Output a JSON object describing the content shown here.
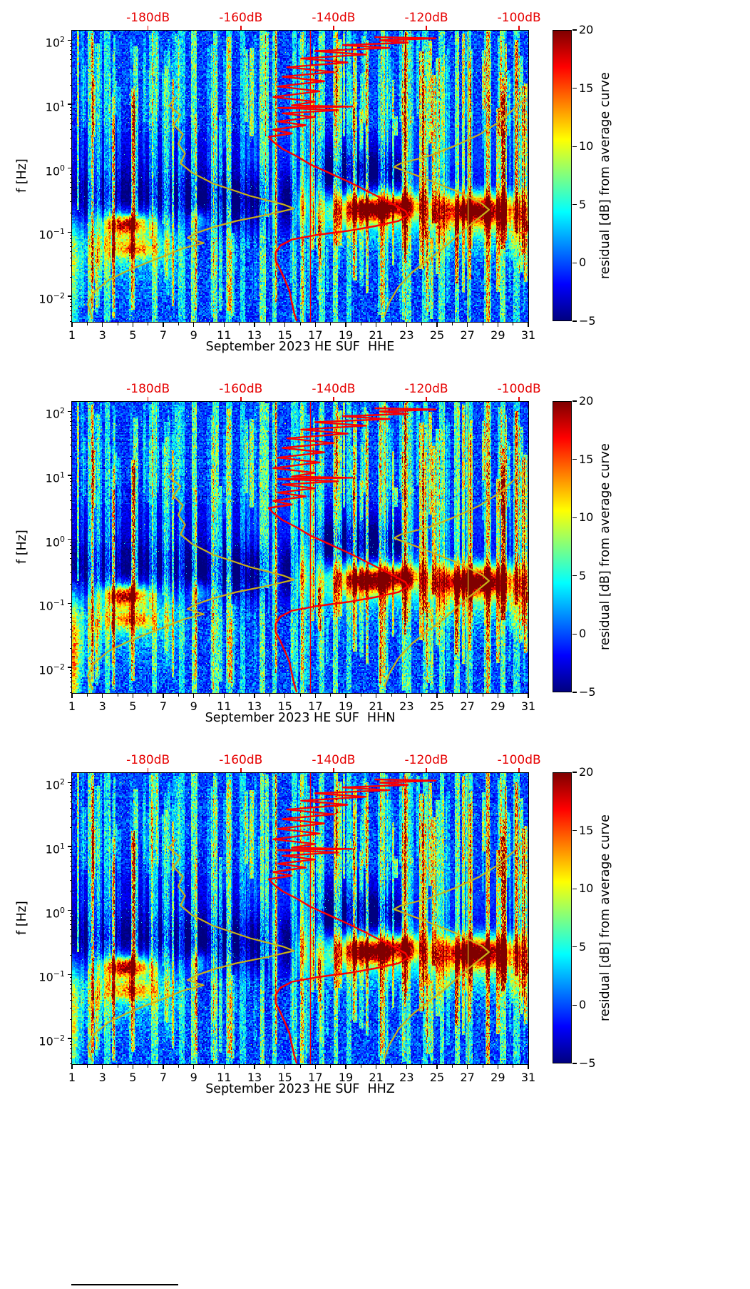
{
  "chart_data": {
    "type": "heatmap",
    "x_axis": {
      "min": 1,
      "max": 31,
      "ticks": [
        1,
        3,
        5,
        7,
        9,
        11,
        13,
        15,
        17,
        19,
        21,
        23,
        25,
        27,
        29,
        31
      ],
      "minor_step": 2
    },
    "y_axis": {
      "label": "f [Hz]",
      "scale": "log10",
      "log_min": -2.4,
      "log_max": 2.15,
      "tick_exponents": [
        2,
        1,
        0,
        -1,
        -2
      ]
    },
    "top_axis": {
      "labels": [
        "-180dB",
        "-160dB",
        "-140dB",
        "-120dB",
        "-100dB"
      ],
      "values": [
        -180,
        -160,
        -140,
        -120,
        -100
      ],
      "day_at_minus180": 6.0,
      "days_per_20db": 6.1,
      "color": "#e60000"
    },
    "colorbar": {
      "label": "residual [dB] from average curve",
      "min": -5,
      "max": 20,
      "ticks": [
        20,
        15,
        10,
        5,
        0,
        -5
      ]
    },
    "curve_colors": {
      "psd": "#fd0000",
      "reference": "#c9b117"
    },
    "curves": {
      "red_psd_db_vs_hz": [
        [
          -131,
          112
        ],
        [
          -118,
          107
        ],
        [
          -130,
          100
        ],
        [
          -124,
          92
        ],
        [
          -138,
          84
        ],
        [
          -128,
          76
        ],
        [
          -144,
          68
        ],
        [
          -133,
          60
        ],
        [
          -147,
          52
        ],
        [
          -137,
          45
        ],
        [
          -150,
          38
        ],
        [
          -140,
          32
        ],
        [
          -151,
          27
        ],
        [
          -142,
          23
        ],
        [
          -152,
          19
        ],
        [
          -143,
          16
        ],
        [
          -153,
          13
        ],
        [
          -144,
          11
        ],
        [
          -149,
          9.6
        ],
        [
          -136,
          9.2
        ],
        [
          -152,
          8.8
        ],
        [
          -139,
          8.1
        ],
        [
          -151,
          7.2
        ],
        [
          -144,
          6.3
        ],
        [
          -152,
          5.4
        ],
        [
          -146,
          4.7
        ],
        [
          -153,
          4.0
        ],
        [
          -149,
          3.5
        ],
        [
          -154,
          3.1
        ],
        [
          -153,
          2.6
        ],
        [
          -151,
          2.0
        ],
        [
          -148,
          1.55
        ],
        [
          -145,
          1.15
        ],
        [
          -141,
          0.85
        ],
        [
          -136,
          0.58
        ],
        [
          -131,
          0.38
        ],
        [
          -127,
          0.27
        ],
        [
          -124.5,
          0.215
        ],
        [
          -124,
          0.185
        ],
        [
          -126,
          0.15
        ],
        [
          -131,
          0.125
        ],
        [
          -137,
          0.105
        ],
        [
          -144,
          0.09
        ],
        [
          -149,
          0.077
        ],
        [
          -151.5,
          0.062
        ],
        [
          -152.5,
          0.048
        ],
        [
          -152.5,
          0.036
        ],
        [
          -151.5,
          0.026
        ],
        [
          -150.5,
          0.018
        ],
        [
          -149.5,
          0.012
        ],
        [
          -149,
          0.008
        ],
        [
          -148.5,
          0.0055
        ],
        [
          -148,
          0.0042
        ]
      ],
      "red_vline_db": -145,
      "olive_left_db_vs_hz": [
        [
          -174,
          13
        ],
        [
          -175.5,
          9.5
        ],
        [
          -173,
          6.8
        ],
        [
          -174.5,
          4.8
        ],
        [
          -172.5,
          3.4
        ],
        [
          -173.5,
          2.4
        ],
        [
          -172,
          1.7
        ],
        [
          -173,
          1.2
        ],
        [
          -170.5,
          0.85
        ],
        [
          -166,
          0.58
        ],
        [
          -158,
          0.37
        ],
        [
          -151,
          0.275
        ],
        [
          -148.5,
          0.235
        ],
        [
          -154,
          0.19
        ],
        [
          -161,
          0.15
        ],
        [
          -166,
          0.12
        ],
        [
          -169.5,
          0.098
        ],
        [
          -171.5,
          0.082
        ],
        [
          -168,
          0.068
        ],
        [
          -172.5,
          0.056
        ],
        [
          -176,
          0.044
        ],
        [
          -180,
          0.034
        ],
        [
          -184.5,
          0.025
        ],
        [
          -188.5,
          0.018
        ],
        [
          -191.5,
          0.012
        ],
        [
          -193,
          0.0075
        ],
        [
          -192,
          0.0045
        ]
      ],
      "olive_right_db_vs_hz": [
        [
          -99,
          12
        ],
        [
          -101.5,
          8
        ],
        [
          -104.5,
          5.2
        ],
        [
          -108.5,
          3.4
        ],
        [
          -113.5,
          2.3
        ],
        [
          -119.5,
          1.55
        ],
        [
          -125.5,
          1.2
        ],
        [
          -127,
          1.05
        ],
        [
          -121,
          0.72
        ],
        [
          -113.5,
          0.44
        ],
        [
          -108,
          0.28
        ],
        [
          -106.5,
          0.225
        ],
        [
          -109,
          0.16
        ],
        [
          -111.5,
          0.115
        ],
        [
          -114,
          0.08
        ],
        [
          -116.5,
          0.055
        ],
        [
          -119.5,
          0.038
        ],
        [
          -123,
          0.024
        ],
        [
          -126,
          0.014
        ],
        [
          -128,
          0.008
        ],
        [
          -129,
          0.005
        ]
      ],
      "olive_vline_db": -111
    },
    "blob_format": "[day_center, log10f_center, sigma_days, sigma_log10f, amplitude_db]",
    "panels": [
      {
        "xlabel": "September 2023 HE SUF  HHE",
        "seed": 11,
        "blobs": [
          [
            4.6,
            -0.88,
            0.9,
            0.1,
            17
          ],
          [
            4.8,
            -1.0,
            1.7,
            0.3,
            5
          ],
          [
            4.9,
            -1.26,
            1.1,
            0.1,
            9
          ],
          [
            20.6,
            -0.64,
            1.1,
            0.12,
            16
          ],
          [
            20.8,
            -0.6,
            2.2,
            0.22,
            5
          ],
          [
            22.8,
            -0.58,
            0.7,
            0.1,
            11
          ],
          [
            27.6,
            -0.66,
            1.4,
            0.13,
            13
          ],
          [
            27.6,
            -0.6,
            2.5,
            0.25,
            5
          ],
          [
            9.3,
            -0.82,
            0.4,
            0.12,
            7
          ],
          [
            14.3,
            -0.5,
            0.3,
            0.3,
            7
          ],
          [
            16.1,
            -0.6,
            0.25,
            0.25,
            8
          ],
          [
            1.1,
            -1.6,
            0.25,
            0.8,
            7
          ]
        ]
      },
      {
        "xlabel": "September 2023 HE SUF  HHN",
        "seed": 22,
        "blobs": [
          [
            4.6,
            -0.88,
            0.9,
            0.1,
            17
          ],
          [
            4.8,
            -1.0,
            1.7,
            0.3,
            5
          ],
          [
            4.9,
            -1.26,
            1.1,
            0.1,
            9
          ],
          [
            20.6,
            -0.64,
            1.1,
            0.12,
            16
          ],
          [
            20.8,
            -0.6,
            2.2,
            0.22,
            5
          ],
          [
            22.8,
            -0.58,
            0.7,
            0.1,
            11
          ],
          [
            27.6,
            -0.66,
            1.4,
            0.13,
            15
          ],
          [
            27.6,
            -0.6,
            2.5,
            0.25,
            5
          ],
          [
            9.3,
            -0.82,
            0.4,
            0.12,
            7
          ],
          [
            14.3,
            -0.5,
            0.3,
            0.3,
            7
          ],
          [
            16.1,
            -0.6,
            0.25,
            0.25,
            8
          ],
          [
            1.1,
            -1.9,
            0.3,
            0.7,
            13
          ]
        ]
      },
      {
        "xlabel": "September 2023 HE SUF  HHZ",
        "seed": 33,
        "blobs": [
          [
            4.6,
            -0.88,
            0.9,
            0.1,
            18
          ],
          [
            4.8,
            -1.0,
            1.7,
            0.3,
            5
          ],
          [
            4.9,
            -1.26,
            1.1,
            0.1,
            9
          ],
          [
            20.6,
            -0.64,
            1.1,
            0.12,
            16
          ],
          [
            20.8,
            -0.6,
            2.2,
            0.22,
            5
          ],
          [
            22.8,
            -0.58,
            0.7,
            0.1,
            11
          ],
          [
            27.6,
            -0.66,
            1.4,
            0.13,
            14
          ],
          [
            27.6,
            -0.6,
            2.5,
            0.25,
            5
          ],
          [
            9.3,
            -0.82,
            0.4,
            0.12,
            7
          ],
          [
            14.3,
            -0.5,
            0.3,
            0.3,
            7
          ],
          [
            16.1,
            -0.6,
            0.25,
            0.25,
            8
          ],
          [
            1.1,
            -1.8,
            0.25,
            0.7,
            9
          ]
        ]
      }
    ],
    "major_streaks": [
      [
        2.2,
        8
      ],
      [
        3.3,
        6
      ],
      [
        6.4,
        7
      ],
      [
        8.2,
        5
      ],
      [
        9.0,
        9
      ],
      [
        10.4,
        8
      ],
      [
        11.3,
        6
      ],
      [
        12.2,
        5
      ],
      [
        13.5,
        9
      ],
      [
        15.6,
        6
      ],
      [
        16.2,
        5
      ],
      [
        17.4,
        7
      ],
      [
        18.3,
        8
      ],
      [
        19.2,
        6
      ],
      [
        21.4,
        9
      ],
      [
        23.1,
        7
      ],
      [
        24.2,
        6
      ],
      [
        25.3,
        7
      ],
      [
        26.3,
        8
      ],
      [
        27.1,
        6
      ],
      [
        28.3,
        7
      ],
      [
        29.3,
        8
      ],
      [
        30.2,
        6
      ]
    ],
    "random_streaks": {
      "count": 150,
      "seed": 777
    },
    "texture": {
      "noise_base": 1.15,
      "dark_bands": [
        [
          -0.5,
          0.33,
          5.2,
          -2,
          16.5
        ],
        [
          -0.18,
          0.22,
          4.5,
          16.5,
          24
        ],
        [
          -0.25,
          0.16,
          3.2,
          24,
          33
        ],
        [
          0.12,
          0.3,
          3.0,
          16.5,
          23
        ],
        [
          0.35,
          0.4,
          1.6,
          -2,
          13
        ]
      ],
      "washes": [
        [
          -0.75,
          0.3,
          4.5,
          16.5,
          33
        ],
        [
          -1.35,
          0.4,
          2.6,
          -2,
          9
        ],
        [
          -0.95,
          0.35,
          2.4,
          24,
          33
        ]
      ],
      "top_speckle": [
        0.55,
        4.2
      ],
      "low_speckle": [
        -1.05,
        5.0
      ],
      "hot_pixel_amp": 9,
      "row_line_amp": -1.4
    }
  }
}
